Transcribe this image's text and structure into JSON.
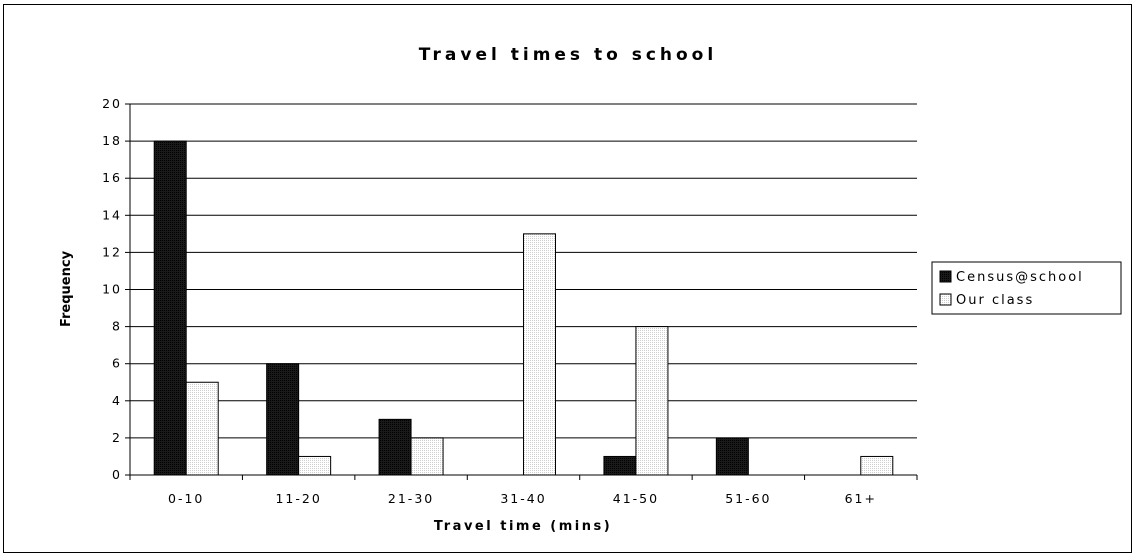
{
  "chart_data": {
    "type": "bar",
    "title": "Travel times to school",
    "xlabel": "Travel time (mins)",
    "ylabel": "Frequency",
    "categories": [
      "0-10",
      "11-20",
      "21-30",
      "31-40",
      "41-50",
      "51-60",
      "61+"
    ],
    "series": [
      {
        "name": "Census@school",
        "values": [
          18,
          6,
          3,
          0,
          1,
          2,
          0
        ],
        "color": "#111111"
      },
      {
        "name": "Our class",
        "values": [
          5,
          1,
          2,
          13,
          8,
          0,
          1
        ],
        "color": "#f4f4f4"
      }
    ],
    "ylim": [
      0,
      20
    ],
    "yticks": [
      0,
      2,
      4,
      6,
      8,
      10,
      12,
      14,
      16,
      18,
      20
    ],
    "grid": true,
    "legend": "right"
  }
}
